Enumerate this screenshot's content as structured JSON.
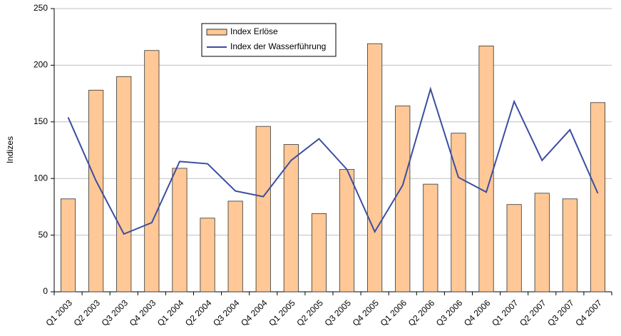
{
  "chart_data": {
    "type": "bar",
    "y_label": "Indizes",
    "categories": [
      "Q1 2003",
      "Q2 2003",
      "Q3 2003",
      "Q4 2003",
      "Q1 2004",
      "Q2 2004",
      "Q3 2004",
      "Q4 2004",
      "Q1 2005",
      "Q2 2005",
      "Q3 2005",
      "Q4 2005",
      "Q1 2006",
      "Q2 2006",
      "Q3 2006",
      "Q4 2006",
      "Q1 2007",
      "Q2 2007",
      "Q3 2007",
      "Q4 2007"
    ],
    "series": [
      {
        "name": "Index Erlöse",
        "type": "bar",
        "color": "#ffc896",
        "values": [
          82,
          178,
          190,
          213,
          109,
          65,
          80,
          146,
          130,
          69,
          108,
          219,
          164,
          95,
          140,
          217,
          77,
          87,
          82,
          167
        ]
      },
      {
        "name": "Index der Wasserführung",
        "type": "line",
        "color": "#3b4ea0",
        "values": [
          154,
          98,
          51,
          61,
          115,
          113,
          89,
          84,
          116,
          135,
          108,
          53,
          94,
          179,
          101,
          88,
          168,
          116,
          143,
          87
        ]
      }
    ],
    "ylim": [
      0,
      250
    ],
    "yticks": [
      0,
      50,
      100,
      150,
      200,
      250
    ],
    "grid": true,
    "legend": "top-center"
  }
}
